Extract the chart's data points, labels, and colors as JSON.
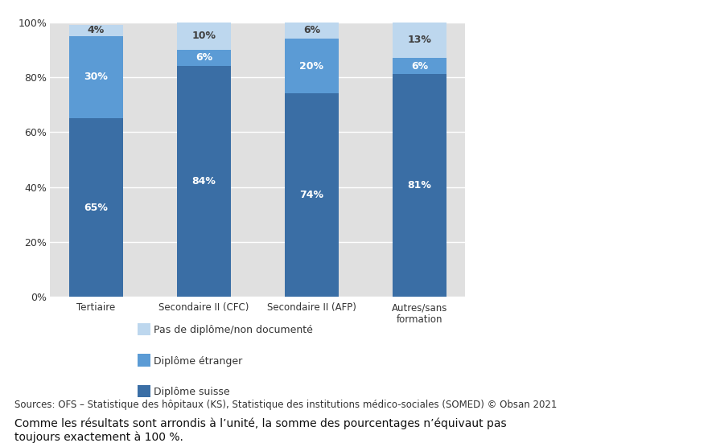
{
  "categories": [
    "Tertiaire",
    "Secondaire II (CFC)",
    "Secondaire II (AFP)",
    "Autres/sans\nformation"
  ],
  "diplome_suisse": [
    65,
    84,
    74,
    81
  ],
  "diplome_etranger": [
    30,
    6,
    20,
    6
  ],
  "pas_diplome": [
    4,
    10,
    6,
    13
  ],
  "color_suisse": "#3A6EA5",
  "color_etranger": "#5B9BD5",
  "color_pas": "#BDD7EE",
  "bar_width": 0.5,
  "ylim": [
    0,
    100
  ],
  "yticks": [
    0,
    20,
    40,
    60,
    80,
    100
  ],
  "ytick_labels": [
    "0%",
    "20%",
    "40%",
    "60%",
    "80%",
    "100%"
  ],
  "legend_labels": [
    "Pas de diplôme/non documenté",
    "Diplôme étranger",
    "Diplôme suisse"
  ],
  "source_text": "Sources: OFS – Statistique des hôpitaux (KS), Statistique des institutions médico-sociales (SOMED) © Obsan 2021",
  "footnote_text": "Comme les résultats sont arrondis à l’unité, la somme des pourcentages n’équivaut pas\ntoujours exactement à 100 %.",
  "bg_color": "#E0E0E0",
  "fig_bg_color": "#FFFFFF",
  "label_color_white": "#FFFFFF",
  "label_color_dark": "#404040"
}
